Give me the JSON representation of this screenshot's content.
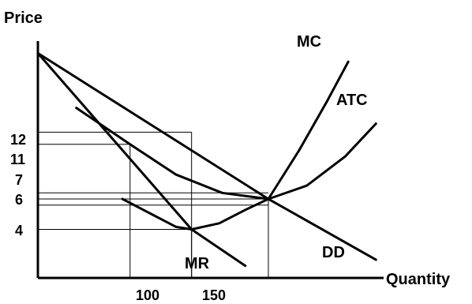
{
  "chart_data": {
    "type": "line",
    "xlabel": "Quantity",
    "ylabel": "Price",
    "x_ticks": [
      100,
      150
    ],
    "y_ticks": [
      4,
      6,
      7,
      11,
      12
    ],
    "xlim": [
      0,
      225
    ],
    "ylim": [
      0,
      19.5
    ],
    "grid": false,
    "series": [
      {
        "name": "DD",
        "points": [
          [
            0,
            18.5
          ],
          [
            150,
            6.5
          ],
          [
            220,
            1.5
          ]
        ]
      },
      {
        "name": "MR",
        "points": [
          [
            0,
            18.5
          ],
          [
            100,
            4
          ],
          [
            135,
            1
          ]
        ]
      },
      {
        "name": "MC",
        "points": [
          [
            55,
            6.5
          ],
          [
            90,
            4.2
          ],
          [
            100,
            4
          ],
          [
            118,
            4.5
          ],
          [
            135,
            5.6
          ],
          [
            150,
            6.5
          ],
          [
            170,
            10.5
          ],
          [
            188,
            14.5
          ],
          [
            202,
            17.8
          ]
        ]
      },
      {
        "name": "ATC",
        "points": [
          [
            25,
            14
          ],
          [
            60,
            11
          ],
          [
            90,
            8.5
          ],
          [
            120,
            7
          ],
          [
            150,
            6.5
          ],
          [
            175,
            7.6
          ],
          [
            200,
            10
          ],
          [
            220,
            12.7
          ]
        ]
      }
    ],
    "guides": [
      {
        "x": 60,
        "y": 11
      },
      {
        "x": 100,
        "y": 12
      },
      {
        "x": 100,
        "y": 4
      },
      {
        "x": 150,
        "y": 6.5
      }
    ],
    "price_guides": [
      7,
      6
    ],
    "labels": {
      "mc": "MC",
      "atc": "ATC",
      "dd": "DD",
      "mr": "MR"
    }
  },
  "axis_text": {
    "price": "Price",
    "quantity": "Quantity",
    "y12": "12",
    "y11": "11",
    "y7": "7",
    "y6": "6",
    "y4": "4",
    "x100": "100",
    "x150": "150"
  }
}
